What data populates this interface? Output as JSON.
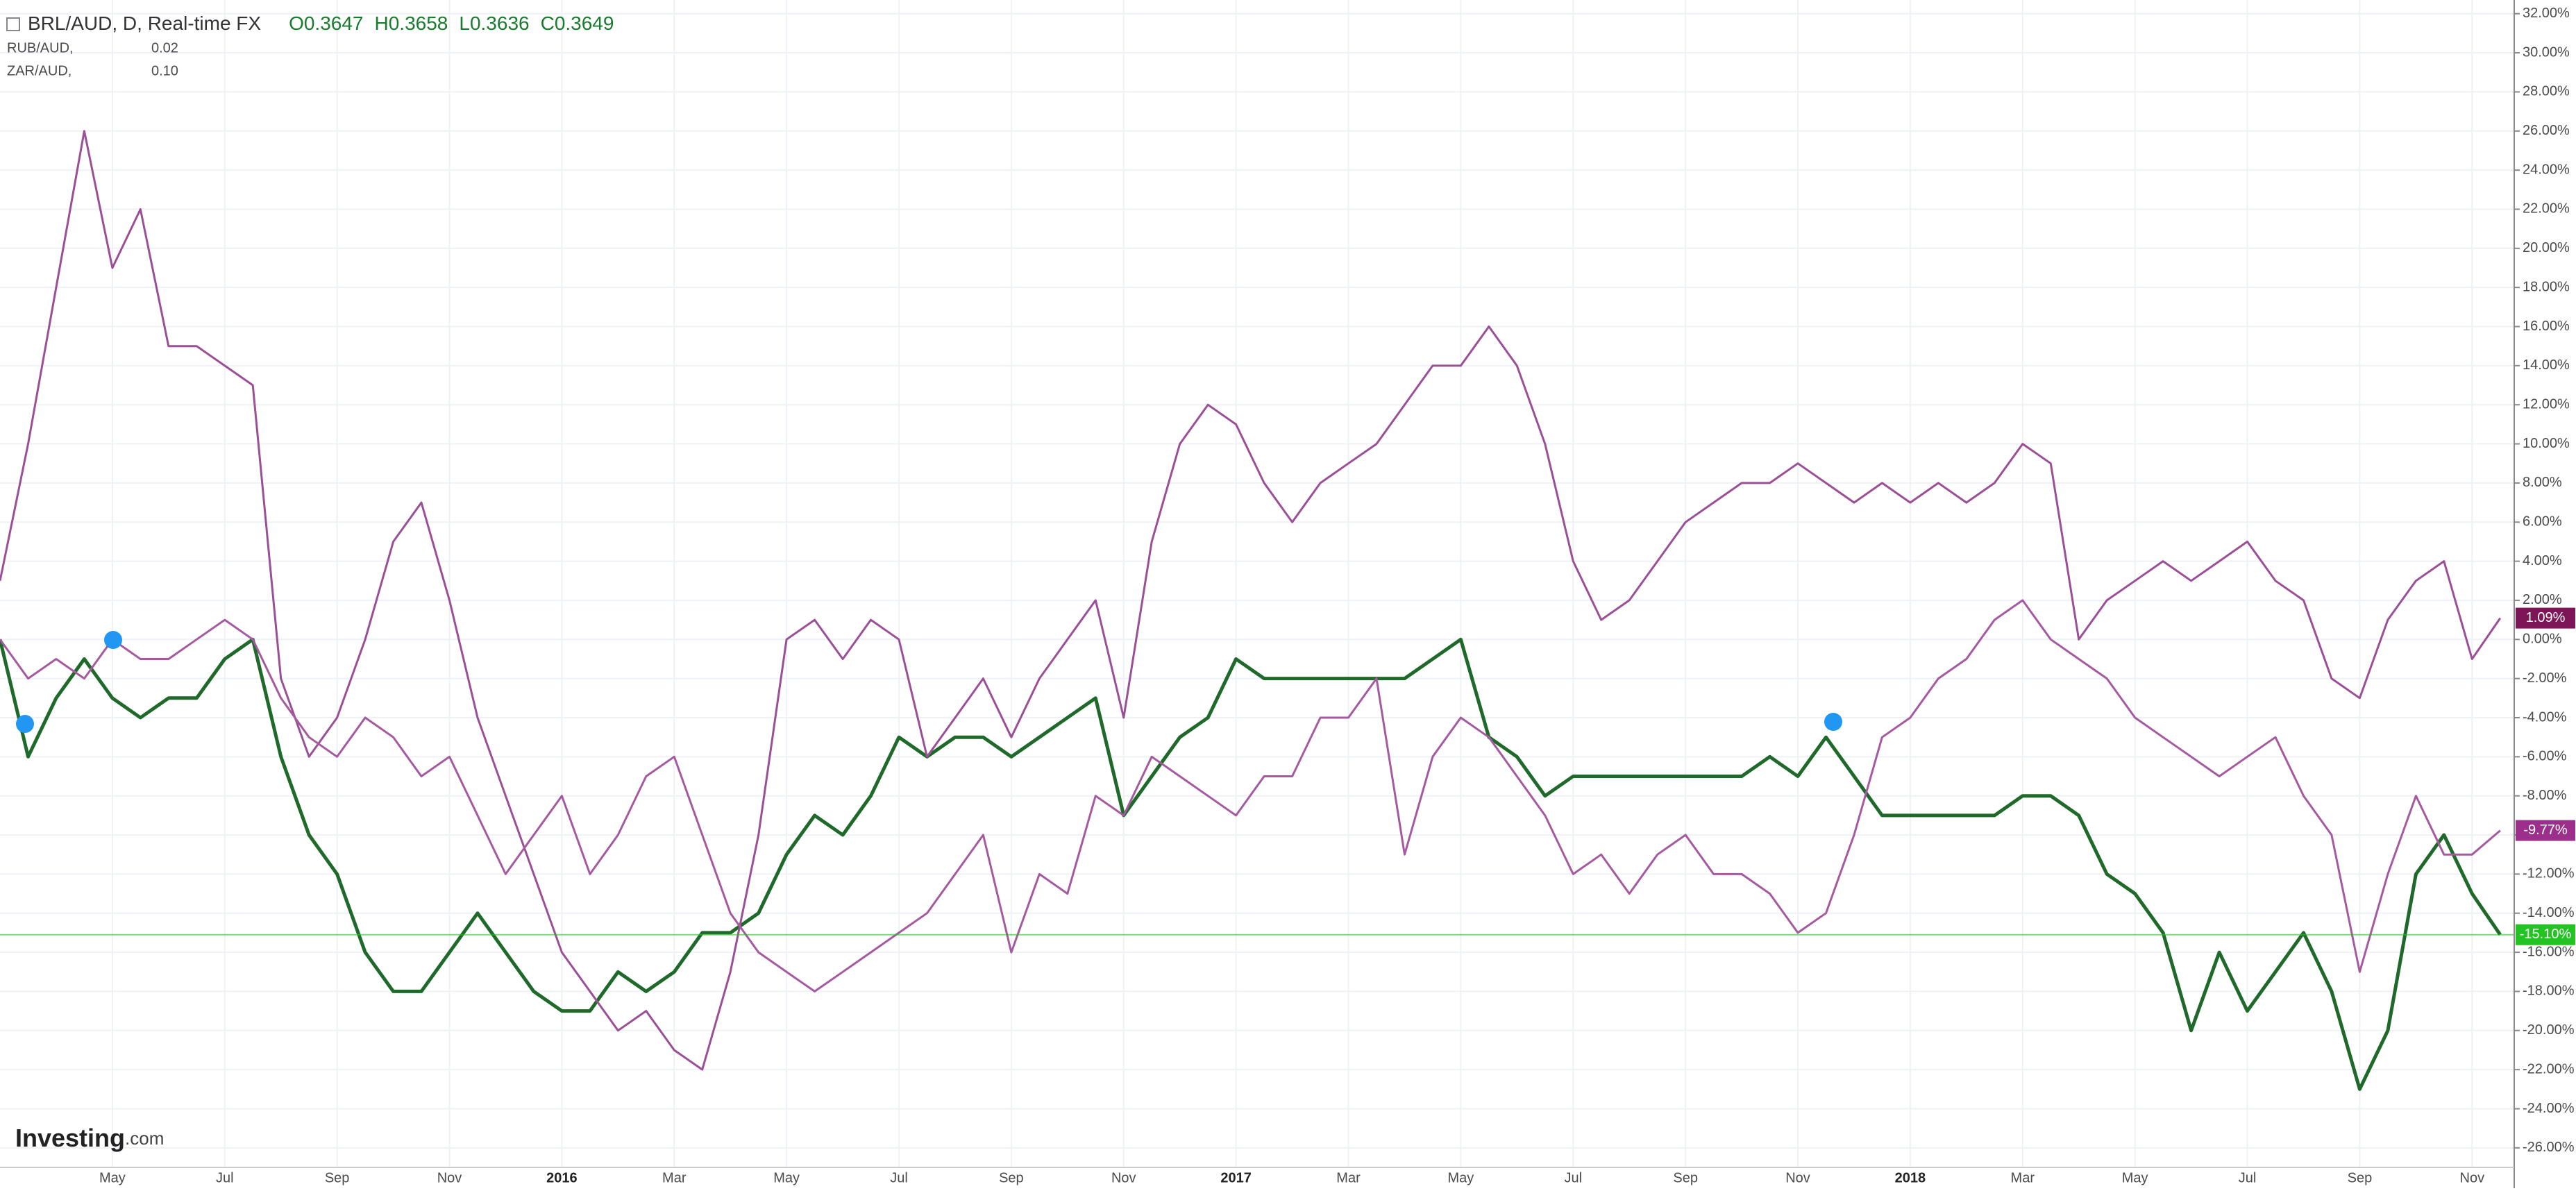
{
  "chart_data": {
    "type": "line",
    "ohlc_labels": [
      "O0.3647",
      "H0.3658",
      "L0.3636",
      "C0.3649"
    ],
    "logo": [
      "Investing",
      ".com"
    ],
    "categories": [
      null,
      null,
      null,
      null,
      "May",
      null,
      null,
      null,
      "Jul",
      null,
      null,
      null,
      "Sep",
      null,
      null,
      null,
      "Nov",
      null,
      null,
      null,
      "2016",
      null,
      null,
      null,
      "Mar",
      null,
      null,
      null,
      "May",
      null,
      null,
      null,
      "Jul",
      null,
      null,
      null,
      "Sep",
      null,
      null,
      null,
      "Nov",
      null,
      null,
      null,
      "2017",
      null,
      null,
      null,
      "Mar",
      null,
      null,
      null,
      "May",
      null,
      null,
      null,
      "Jul",
      null,
      null,
      null,
      "Sep",
      null,
      null,
      null,
      "Nov",
      null,
      null,
      null,
      "2018",
      null,
      null,
      null,
      "Mar",
      null,
      null,
      null,
      "May",
      null,
      null,
      null,
      "Jul",
      null,
      null,
      null,
      "Sep",
      null,
      null,
      null,
      "Nov",
      null
    ],
    "series": [
      {
        "name": "BRL/AUD, D, Real-time FX",
        "color": "#1f6a2b",
        "label_color": "#22c322",
        "values": [
          0,
          -6,
          -3,
          -1,
          -3,
          -4,
          -3,
          -3,
          -1,
          0,
          -6,
          -10,
          -12,
          -16,
          -18,
          -18,
          -16,
          -14,
          -16,
          -18,
          -19,
          -19,
          -17,
          -18,
          -17,
          -15,
          -15,
          -14,
          -11,
          -9,
          -10,
          -8,
          -5,
          -6,
          -5,
          -5,
          -6,
          -5,
          -4,
          -3,
          -9,
          -7,
          -5,
          -4,
          -1,
          -2,
          -2,
          -2,
          -2,
          -2,
          -2,
          -1,
          0,
          -5,
          -6,
          -8,
          -7,
          -7,
          -7,
          -7,
          -7,
          -7,
          -7,
          -6,
          -7,
          -5,
          -7,
          -9,
          -9,
          -9,
          -9,
          -9,
          -8,
          -8,
          -9,
          -12,
          -13,
          -15,
          -20,
          -16,
          -19,
          -17,
          -15,
          -18,
          -23,
          -20,
          -12,
          -10,
          -13,
          -15.1
        ],
        "value_labels": [
          null,
          null,
          null,
          null,
          null,
          null,
          null,
          null,
          null,
          null,
          null,
          null,
          null,
          null,
          null,
          null,
          null,
          null,
          null,
          null,
          null,
          null,
          null,
          null,
          null,
          null,
          null,
          null,
          null,
          null,
          null,
          null,
          null,
          null,
          null,
          null,
          null,
          null,
          null,
          null,
          null,
          null,
          null,
          null,
          null,
          null,
          null,
          null,
          null,
          null,
          null,
          null,
          null,
          null,
          null,
          null,
          null,
          null,
          null,
          null,
          null,
          null,
          null,
          null,
          null,
          null,
          null,
          null,
          null,
          null,
          null,
          null,
          null,
          null,
          null,
          null,
          null,
          null,
          null,
          null,
          null,
          null,
          null,
          null,
          null,
          null,
          null,
          null,
          null,
          "-15.10%"
        ]
      },
      {
        "name": "RUB/AUD,",
        "info": "0.02",
        "color": "#9b4f96",
        "label_color": "#7d1656",
        "values": [
          3,
          10,
          18,
          26,
          19,
          22,
          15,
          15,
          14,
          13,
          -2,
          -6,
          -4,
          0,
          5,
          7,
          2,
          -4,
          -8,
          -12,
          -16,
          -18,
          -20,
          -19,
          -21,
          -22,
          -17,
          -10,
          0,
          1,
          -1,
          1,
          0,
          -6,
          -4,
          -2,
          -5,
          -2,
          0,
          2,
          -4,
          5,
          10,
          12,
          11,
          8,
          6,
          8,
          9,
          10,
          12,
          14,
          14,
          16,
          14,
          10,
          4,
          1,
          2,
          4,
          6,
          7,
          8,
          8,
          9,
          8,
          7,
          8,
          7,
          8,
          7,
          8,
          10,
          9,
          0,
          2,
          3,
          4,
          3,
          4,
          5,
          3,
          2,
          -2,
          -3,
          1,
          3,
          4,
          -1,
          1.09
        ],
        "value_labels": [
          null,
          null,
          null,
          null,
          null,
          null,
          null,
          null,
          null,
          null,
          null,
          null,
          null,
          null,
          null,
          null,
          null,
          null,
          null,
          null,
          null,
          null,
          null,
          null,
          null,
          null,
          null,
          null,
          null,
          null,
          null,
          null,
          null,
          null,
          null,
          null,
          null,
          null,
          null,
          null,
          null,
          null,
          null,
          null,
          null,
          null,
          null,
          null,
          null,
          null,
          null,
          null,
          null,
          null,
          null,
          null,
          null,
          null,
          null,
          null,
          null,
          null,
          null,
          null,
          null,
          null,
          null,
          null,
          null,
          null,
          null,
          null,
          null,
          null,
          null,
          null,
          null,
          null,
          null,
          null,
          null,
          null,
          null,
          null,
          null,
          null,
          null,
          null,
          null,
          "1.09%"
        ]
      },
      {
        "name": "ZAR/AUD,",
        "info": "0.10",
        "color": "#a55aa0",
        "label_color": "#9c2f8c",
        "values": [
          0,
          -2,
          -1,
          -2,
          0,
          -1,
          -1,
          0,
          1,
          0,
          -3,
          -5,
          -6,
          -4,
          -5,
          -7,
          -6,
          -9,
          -12,
          -10,
          -8,
          -12,
          -10,
          -7,
          -6,
          -10,
          -14,
          -16,
          -17,
          -18,
          -17,
          -16,
          -15,
          -14,
          -12,
          -10,
          -16,
          -12,
          -13,
          -8,
          -9,
          -6,
          -7,
          -8,
          -9,
          -7,
          -7,
          -4,
          -4,
          -2,
          -11,
          -6,
          -4,
          -5,
          -7,
          -9,
          -12,
          -11,
          -13,
          -11,
          -10,
          -12,
          -12,
          -13,
          -15,
          -14,
          -10,
          -5,
          -4,
          -2,
          -1,
          1,
          2,
          0,
          -1,
          -2,
          -4,
          -5,
          -6,
          -7,
          -6,
          -5,
          -8,
          -10,
          -17,
          -12,
          -8,
          -11,
          -11,
          -9.77
        ],
        "value_labels": [
          null,
          null,
          null,
          null,
          null,
          null,
          null,
          null,
          null,
          null,
          null,
          null,
          null,
          null,
          null,
          null,
          null,
          null,
          null,
          null,
          null,
          null,
          null,
          null,
          null,
          null,
          null,
          null,
          null,
          null,
          null,
          null,
          null,
          null,
          null,
          null,
          null,
          null,
          null,
          null,
          null,
          null,
          null,
          null,
          null,
          null,
          null,
          null,
          null,
          null,
          null,
          null,
          null,
          null,
          null,
          null,
          null,
          null,
          null,
          null,
          null,
          null,
          null,
          null,
          null,
          null,
          null,
          null,
          null,
          null,
          null,
          null,
          null,
          null,
          null,
          null,
          null,
          null,
          null,
          null,
          null,
          null,
          null,
          null,
          null,
          null,
          null,
          null,
          null,
          "-9.77%"
        ]
      }
    ],
    "ylim": [
      -27,
      32.7
    ],
    "yticks": [
      {
        "value": 32,
        "label": "32.00%"
      },
      {
        "value": 30,
        "label": "30.00%"
      },
      {
        "value": 28,
        "label": "28.00%"
      },
      {
        "value": 26,
        "label": "26.00%"
      },
      {
        "value": 24,
        "label": "24.00%"
      },
      {
        "value": 22,
        "label": "22.00%"
      },
      {
        "value": 20,
        "label": "20.00%"
      },
      {
        "value": 18,
        "label": "18.00%"
      },
      {
        "value": 16,
        "label": "16.00%"
      },
      {
        "value": 14,
        "label": "14.00%"
      },
      {
        "value": 12,
        "label": "12.00%"
      },
      {
        "value": 10,
        "label": "10.00%"
      },
      {
        "value": 8,
        "label": "8.00%"
      },
      {
        "value": 6,
        "label": "6.00%"
      },
      {
        "value": 4,
        "label": "4.00%"
      },
      {
        "value": 2,
        "label": "2.00%"
      },
      {
        "value": 0,
        "label": "0.00%"
      },
      {
        "value": -2,
        "label": "-2.00%"
      },
      {
        "value": -4,
        "label": "-4.00%"
      },
      {
        "value": -6,
        "label": "-6.00%"
      },
      {
        "value": -8,
        "label": "-8.00%"
      },
      {
        "value": -10,
        "label": "-10.00%"
      },
      {
        "value": -12,
        "label": "-12.00%"
      },
      {
        "value": -14,
        "label": "-14.00%"
      },
      {
        "value": -16,
        "label": "-16.00%"
      },
      {
        "value": -18,
        "label": "-18.00%"
      },
      {
        "value": -20,
        "label": "-20.00%"
      },
      {
        "value": -22,
        "label": "-22.00%"
      },
      {
        "value": -24,
        "label": "-24.00%"
      },
      {
        "value": -26,
        "label": "-26.00%"
      }
    ],
    "grid": true
  }
}
